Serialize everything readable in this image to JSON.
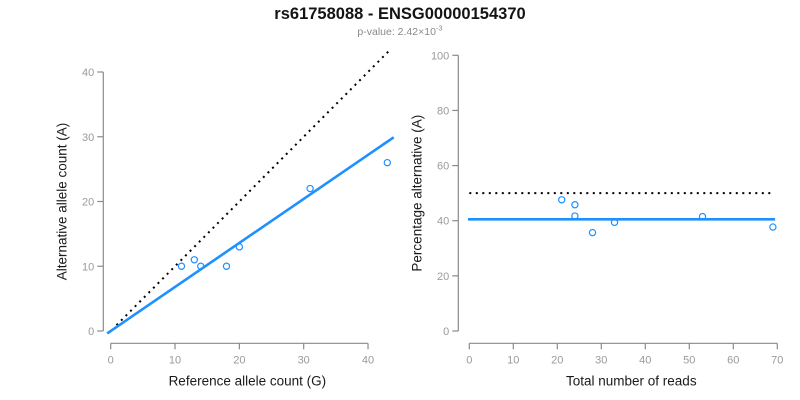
{
  "header": {
    "title": "rs61758088 - ENSG00000154370",
    "subtitle_base": "p-value: 2.42×10",
    "subtitle_exponent": "-3"
  },
  "colors": {
    "accent_blue": "#1E90FF",
    "line_black": "#000000",
    "axis_gray": "#8a8a8a",
    "tick_label_gray": "#9a9a9a"
  },
  "chart_data": [
    {
      "type": "scatter",
      "panel": "left",
      "xlabel": "Reference allele count (G)",
      "ylabel": "Alternative allele count (A)",
      "xticks": [
        0,
        10,
        20,
        30,
        40
      ],
      "yticks": [
        0,
        10,
        20,
        30,
        40
      ],
      "xlim": [
        0,
        40
      ],
      "ylim": [
        0,
        40
      ],
      "grid": false,
      "points": [
        [
          11,
          10
        ],
        [
          13,
          11
        ],
        [
          14,
          10
        ],
        [
          18,
          10
        ],
        [
          20,
          13
        ],
        [
          31,
          22
        ],
        [
          43,
          26
        ]
      ],
      "lines": [
        {
          "name": "identity-line",
          "slope": 1,
          "intercept": 0,
          "style": "dotted",
          "color": "#000000",
          "x_range": [
            0.9,
            43.6
          ]
        },
        {
          "name": "fit-line",
          "slope": 0.68,
          "intercept": 0,
          "style": "solid",
          "color": "#1E90FF",
          "x_range": [
            -0.55,
            44.0
          ]
        }
      ]
    },
    {
      "type": "scatter",
      "panel": "right",
      "xlabel": "Total number of reads",
      "ylabel": "Percentage alternative (A)",
      "xticks": [
        0,
        10,
        20,
        30,
        40,
        50,
        60,
        70
      ],
      "yticks": [
        0,
        20,
        40,
        60,
        80,
        100
      ],
      "xlim": [
        0,
        70
      ],
      "ylim": [
        0,
        100
      ],
      "grid": false,
      "points": [
        [
          21,
          47.6
        ],
        [
          24,
          45.8
        ],
        [
          24,
          41.7
        ],
        [
          28,
          35.7
        ],
        [
          33,
          39.4
        ],
        [
          53,
          41.5
        ],
        [
          69,
          37.7
        ]
      ],
      "lines": [
        {
          "name": "expected-50pct-line",
          "slope": 0,
          "intercept": 50,
          "style": "dotted",
          "color": "#000000",
          "x_range": [
            0,
            68.5
          ]
        },
        {
          "name": "mean-percentage-line",
          "slope": 0,
          "intercept": 40.5,
          "style": "solid",
          "color": "#1E90FF",
          "x_range": [
            -0.3,
            69.5
          ]
        }
      ]
    }
  ]
}
